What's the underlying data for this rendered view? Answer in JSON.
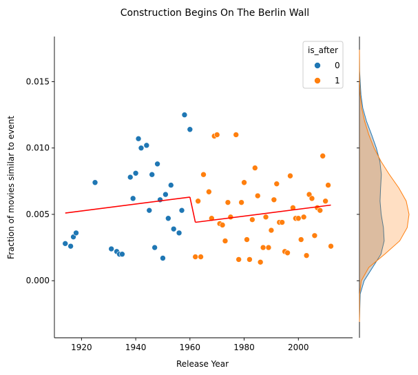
{
  "chart_data": {
    "type": "scatter",
    "title": "Construction Begins On The Berlin Wall",
    "xlabel": "Release Year",
    "ylabel": "Fraction of movies similar to event",
    "xlim": [
      1910,
      2020
    ],
    "ylim": [
      -0.0043,
      0.0184
    ],
    "xticks": [
      1920,
      1940,
      1960,
      1980,
      2000
    ],
    "xtick_labels": [
      "1920",
      "1940",
      "1960",
      "1980",
      "2000"
    ],
    "yticks": [
      0.0,
      0.005,
      0.01,
      0.015
    ],
    "ytick_labels": [
      "0.000",
      "0.005",
      "0.010",
      "0.015"
    ],
    "grid": false,
    "legend": {
      "title": "is_after",
      "position": "top-right",
      "entries": [
        {
          "label": "0",
          "color": "#1f77b4"
        },
        {
          "label": "1",
          "color": "#ff7f0e"
        }
      ]
    },
    "series": [
      {
        "name": "0",
        "color": "#1f77b4",
        "points": [
          [
            1914,
            0.0028
          ],
          [
            1916,
            0.0026
          ],
          [
            1917,
            0.0033
          ],
          [
            1918,
            0.0036
          ],
          [
            1925,
            0.0074
          ],
          [
            1931,
            0.0024
          ],
          [
            1933,
            0.0022
          ],
          [
            1934,
            0.002
          ],
          [
            1935,
            0.002
          ],
          [
            1938,
            0.0078
          ],
          [
            1939,
            0.0062
          ],
          [
            1940,
            0.0081
          ],
          [
            1941,
            0.0107
          ],
          [
            1942,
            0.01
          ],
          [
            1944,
            0.0102
          ],
          [
            1945,
            0.0053
          ],
          [
            1946,
            0.008
          ],
          [
            1947,
            0.0025
          ],
          [
            1948,
            0.0088
          ],
          [
            1949,
            0.0061
          ],
          [
            1950,
            0.0017
          ],
          [
            1951,
            0.0065
          ],
          [
            1952,
            0.0047
          ],
          [
            1953,
            0.0072
          ],
          [
            1954,
            0.0039
          ],
          [
            1956,
            0.0036
          ],
          [
            1957,
            0.0053
          ],
          [
            1958,
            0.0125
          ],
          [
            1960,
            0.0114
          ]
        ]
      },
      {
        "name": "1",
        "color": "#ff7f0e",
        "points": [
          [
            1962,
            0.0018
          ],
          [
            1963,
            0.006
          ],
          [
            1964,
            0.0018
          ],
          [
            1965,
            0.008
          ],
          [
            1967,
            0.0067
          ],
          [
            1968,
            0.0047
          ],
          [
            1969,
            0.0109
          ],
          [
            1970,
            0.011
          ],
          [
            1971,
            0.0043
          ],
          [
            1972,
            0.0042
          ],
          [
            1973,
            0.003
          ],
          [
            1974,
            0.0059
          ],
          [
            1975,
            0.0048
          ],
          [
            1977,
            0.011
          ],
          [
            1978,
            0.0016
          ],
          [
            1979,
            0.0059
          ],
          [
            1980,
            0.0074
          ],
          [
            1981,
            0.0031
          ],
          [
            1982,
            0.0016
          ],
          [
            1983,
            0.0046
          ],
          [
            1984,
            0.0085
          ],
          [
            1985,
            0.0064
          ],
          [
            1986,
            0.0014
          ],
          [
            1987,
            0.0025
          ],
          [
            1988,
            0.0048
          ],
          [
            1989,
            0.0025
          ],
          [
            1990,
            0.0038
          ],
          [
            1991,
            0.0061
          ],
          [
            1992,
            0.0073
          ],
          [
            1993,
            0.0044
          ],
          [
            1994,
            0.0044
          ],
          [
            1995,
            0.0022
          ],
          [
            1996,
            0.0021
          ],
          [
            1997,
            0.0079
          ],
          [
            1998,
            0.0055
          ],
          [
            1999,
            0.0047
          ],
          [
            2000,
            0.0047
          ],
          [
            2001,
            0.0031
          ],
          [
            2002,
            0.0048
          ],
          [
            2003,
            0.0019
          ],
          [
            2004,
            0.0065
          ],
          [
            2005,
            0.0062
          ],
          [
            2006,
            0.0034
          ],
          [
            2007,
            0.0055
          ],
          [
            2008,
            0.0053
          ],
          [
            2009,
            0.0094
          ],
          [
            2010,
            0.006
          ],
          [
            2011,
            0.0072
          ],
          [
            2012,
            0.0026
          ]
        ]
      }
    ],
    "fit_lines": {
      "color": "#ff0000",
      "segments": [
        [
          [
            1914,
            0.0051
          ],
          [
            1960,
            0.0063
          ]
        ],
        [
          [
            1960,
            0.0063
          ],
          [
            1962,
            0.0044
          ]
        ],
        [
          [
            1962,
            0.0044
          ],
          [
            2012,
            0.0057
          ]
        ]
      ]
    },
    "marginal_kde": {
      "side": "right",
      "curves": [
        {
          "name": "0",
          "color": "#1f77b4",
          "fill": "#7a7a7a",
          "fill_opacity": 0.35,
          "y": [
            -0.0031,
            -0.001,
            0.0,
            0.001,
            0.002,
            0.003,
            0.004,
            0.005,
            0.006,
            0.007,
            0.008,
            0.009,
            0.01,
            0.011,
            0.012,
            0.013,
            0.014,
            0.015,
            0.0158,
            0.0174
          ],
          "density": [
            0,
            0.4,
            2.5,
            7.0,
            11.5,
            13.2,
            12.8,
            11.6,
            11.0,
            11.3,
            11.7,
            10.9,
            9.0,
            6.5,
            3.8,
            1.8,
            0.8,
            0.4,
            0.1,
            0
          ]
        },
        {
          "name": "1",
          "color": "#ff7f0e",
          "fill": "#ff7f0e",
          "fill_opacity": 0.25,
          "y": [
            -0.0031,
            -0.001,
            0.0,
            0.001,
            0.002,
            0.003,
            0.004,
            0.005,
            0.006,
            0.007,
            0.008,
            0.009,
            0.01,
            0.011,
            0.012,
            0.013,
            0.014,
            0.015,
            0.0158,
            0.0174
          ],
          "density": [
            0,
            0.1,
            1.0,
            5.0,
            13.5,
            21.5,
            25.5,
            26.5,
            25.0,
            21.0,
            16.0,
            11.5,
            7.8,
            5.0,
            2.8,
            1.2,
            0.4,
            0.1,
            0,
            0
          ]
        }
      ]
    }
  }
}
